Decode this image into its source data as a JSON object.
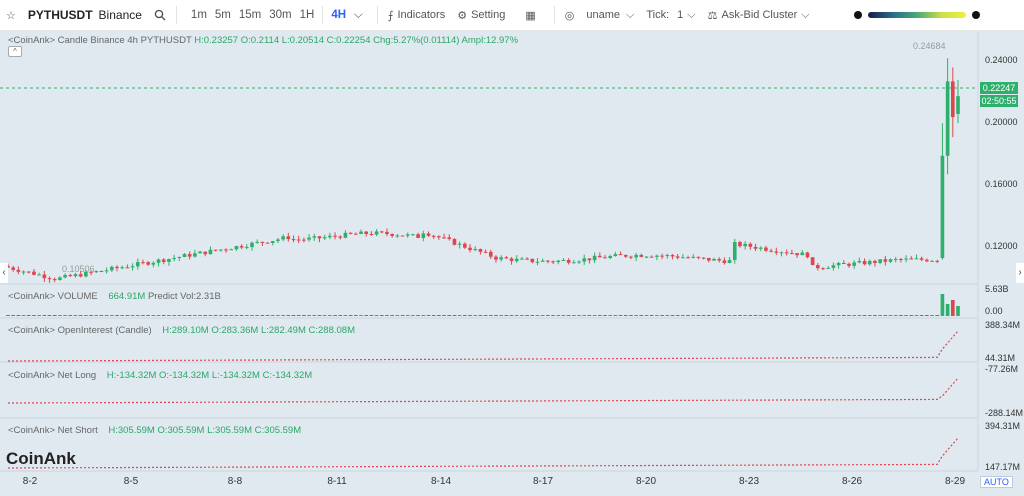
{
  "toolbar": {
    "symbol": "PYTHUSDT",
    "exchange": "Binance",
    "timeframes": [
      "1m",
      "5m",
      "15m",
      "30m",
      "1H",
      "4H"
    ],
    "active_timeframe": "4H",
    "indicators_label": "Indicators",
    "setting_label": "Setting",
    "user_label": "uname",
    "tick_label": "Tick:",
    "tick_value": "1",
    "cluster_label": "Ask-Bid Cluster"
  },
  "panes": {
    "candle": {
      "label": "<CoinAnk> Candle  Binance 4h PYTHUSDT",
      "h": "H:0.23257",
      "o": "O:0.2114",
      "l": "L:0.20514",
      "c": "C:0.22254",
      "chg": "Chg:5.27%(0.01114)",
      "ampl": "Ampl:12.97%"
    },
    "volume": {
      "label": "<CoinAnk> VOLUME",
      "value": "664.91M",
      "predict": "Predict Vol:2.31B"
    },
    "oi": {
      "label": "<CoinAnk> OpenInterest (Candle)",
      "h": "H:289.10M",
      "o": "O:283.36M",
      "l": "L:282.49M",
      "c": "C:288.08M"
    },
    "netlong": {
      "label": "<CoinAnk> Net Long",
      "h": "H:-134.32M",
      "o": "O:-134.32M",
      "l": "L:-134.32M",
      "c": "C:-134.32M"
    },
    "netshort": {
      "label": "<CoinAnk> Net Short",
      "h": "H:305.59M",
      "o": "O:305.59M",
      "l": "L:305.59M",
      "c": "C:305.59M"
    }
  },
  "axis": {
    "price_ticks": [
      "0.24000",
      "0.20000",
      "0.16000",
      "0.12000"
    ],
    "current_price": "0.22247",
    "countdown": "02:50:55",
    "high_marker": "0.24684",
    "low_marker": "0.10506",
    "volume_ticks": [
      "5.63B",
      "0.00"
    ],
    "oi_ticks": [
      "388.34M",
      "44.31M"
    ],
    "netlong_ticks": [
      "-77.26M",
      "-288.14M"
    ],
    "netshort_ticks": [
      "394.31M",
      "147.17M"
    ]
  },
  "x_labels": [
    "8-2",
    "8-5",
    "8-8",
    "8-11",
    "8-14",
    "8-17",
    "8-20",
    "8-23",
    "8-26",
    "8-29"
  ],
  "brand": "CoinAnk",
  "auto_label": "AUTO",
  "colors": {
    "up": "#2eb06d",
    "down": "#e0454f",
    "accent": "#2962ff"
  }
}
